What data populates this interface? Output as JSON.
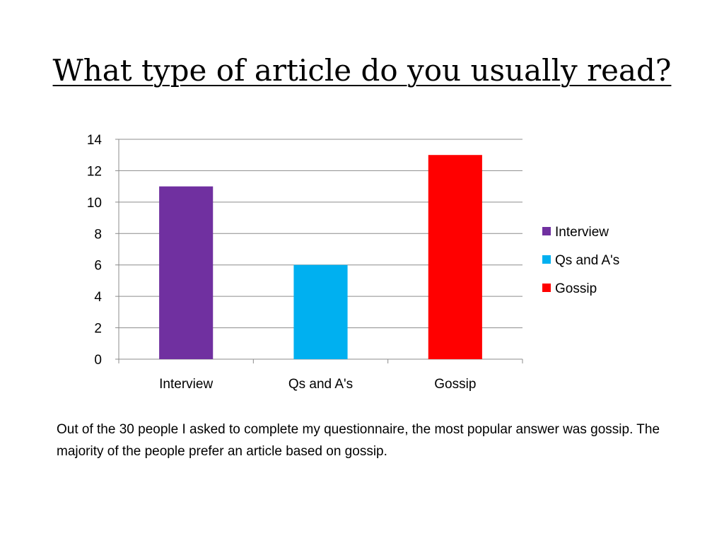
{
  "slide": {
    "title": "What type of article do you usually read?",
    "caption": "Out of the 30 people I asked to complete my questionnaire, the most popular answer was gossip. The majority of the people prefer an article based on gossip."
  },
  "chart_data": {
    "type": "bar",
    "title": "",
    "xlabel": "",
    "ylabel": "",
    "categories": [
      "Interview",
      "Qs and A's",
      "Gossip"
    ],
    "values": [
      11,
      6,
      13
    ],
    "colors": [
      "#7030A0",
      "#00B0F0",
      "#FF0000"
    ],
    "ylim": [
      0,
      14
    ],
    "yticks": [
      0,
      2,
      4,
      6,
      8,
      10,
      12,
      14
    ],
    "grid": true,
    "legend_position": "right",
    "legend": [
      "Interview",
      "Qs and A's",
      "Gossip"
    ]
  }
}
